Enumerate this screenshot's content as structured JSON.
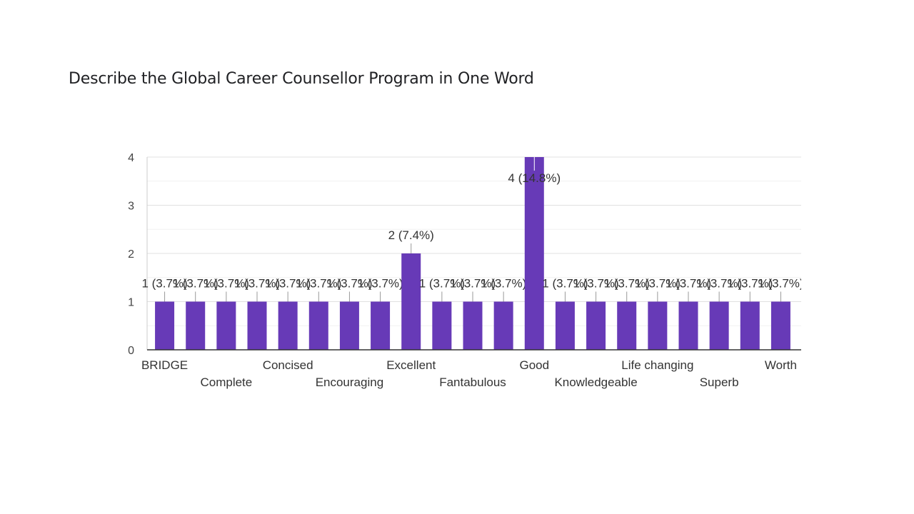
{
  "page": {
    "title": "Describe the Global Career Counsellor Program in One Word"
  },
  "chart_data": {
    "type": "bar",
    "title": "Describe the Global Career Counsellor Program in One Word",
    "xlabel": "",
    "ylabel": "",
    "ylim": [
      0,
      4
    ],
    "y_ticks": [
      0,
      1,
      2,
      3,
      4
    ],
    "grid": true,
    "legend": "none",
    "bar_color": "#673ab7",
    "categories": [
      "BRIDGE",
      "",
      "Complete",
      "",
      "Concised",
      "",
      "Encouraging",
      "",
      "Excellent",
      "",
      "Fantabulous",
      "",
      "Good",
      "",
      "Knowledgeable",
      "",
      "Life changing",
      "",
      "Superb",
      "",
      "Worth"
    ],
    "values": [
      1,
      1,
      1,
      1,
      1,
      1,
      1,
      1,
      2,
      1,
      1,
      1,
      4,
      1,
      1,
      1,
      1,
      1,
      1,
      1,
      1
    ],
    "data_labels": [
      "1 (3.7%)",
      "1 (3.7%)",
      "1 (3.7%)",
      "1 (3.7%)",
      "1 (3.7%)",
      "1 (3.7%)",
      "1 (3.7%)",
      "1 (3.7%)",
      "2 (7.4%)",
      "1 (3.7%)",
      "1 (3.7%)",
      "1 (3.7%)",
      "4 (14.8%)",
      "1 (3.7%)",
      "1 (3.7%)",
      "1 (3.7%)",
      "1 (3.7%)",
      "1 (3.7%)",
      "1 (3.7%)",
      "1 (3.7%)",
      "1 (3.7%)"
    ]
  }
}
